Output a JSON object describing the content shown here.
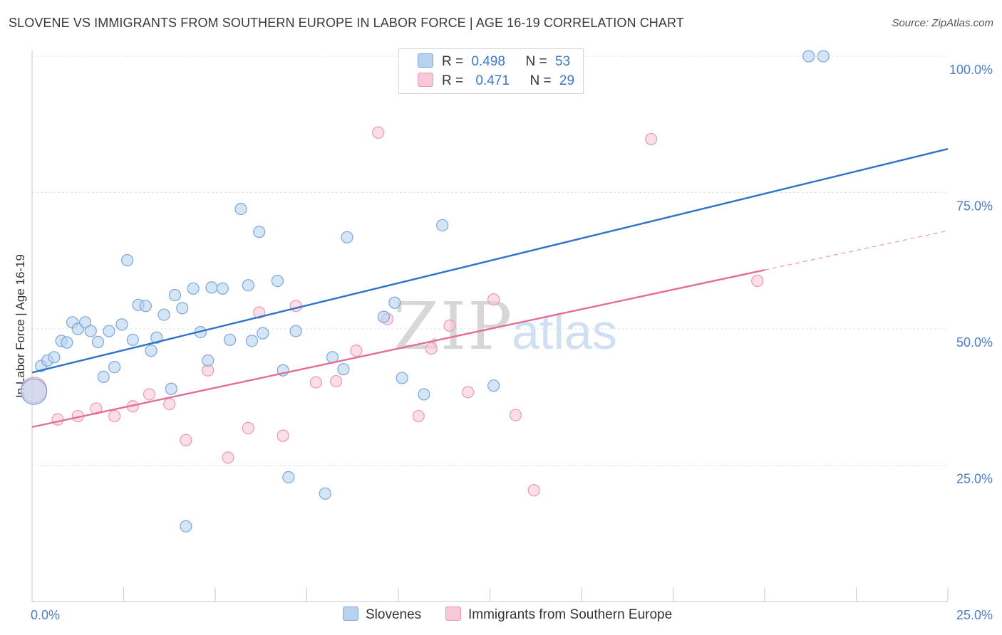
{
  "title": "SLOVENE VS IMMIGRANTS FROM SOUTHERN EUROPE IN LABOR FORCE | AGE 16-19 CORRELATION CHART",
  "source": "Source: ZipAtlas.com",
  "legend": {
    "r_label": "R =",
    "n_label": "N =",
    "series": [
      {
        "name": "Slovenes",
        "r": "0.498",
        "n": "53"
      },
      {
        "name": "Immigrants from Southern Europe",
        "r": "0.471",
        "n": "29"
      }
    ]
  },
  "watermark": {
    "zip": "ZIP",
    "atlas": "atlas"
  },
  "colors": {
    "blue_fill": "#b8d3f0",
    "blue_stroke": "#7aa6dc",
    "blue_line": "#2f72c9",
    "pink_fill": "#f8c8d6",
    "pink_stroke": "#ea9ab2",
    "pink_line": "#e36d97",
    "axis_text": "#4a7fc8",
    "grid": "#e1e1e1"
  },
  "chart_data": {
    "type": "scatter",
    "title": "SLOVENE VS IMMIGRANTS FROM SOUTHERN EUROPE IN LABOR FORCE | AGE 16-19 CORRELATION CHART",
    "xlabel": "",
    "ylabel": "In Labor Force | Age 16-19",
    "xlim": [
      0,
      25
    ],
    "ylim": [
      0,
      105
    ],
    "x_tick_labels": [
      {
        "value": 0,
        "label": "0.0%"
      },
      {
        "value": 25,
        "label": "25.0%"
      }
    ],
    "y_tick_labels": [
      {
        "value": 25,
        "label": "25.0%"
      },
      {
        "value": 50,
        "label": "50.0%"
      },
      {
        "value": 75,
        "label": "75.0%"
      },
      {
        "value": 100,
        "label": "100.0%"
      }
    ],
    "series": [
      {
        "name": "Slovenes",
        "color": "#7aa6dc",
        "trend": {
          "x": [
            0,
            25
          ],
          "y": [
            42.0,
            83.0
          ],
          "dashed_from": null
        },
        "points": [
          {
            "x": 0.05,
            "y": 38.5,
            "big": true
          },
          {
            "x": 0.25,
            "y": 43.2
          },
          {
            "x": 0.42,
            "y": 44.2
          },
          {
            "x": 0.6,
            "y": 44.8
          },
          {
            "x": 0.8,
            "y": 47.8
          },
          {
            "x": 0.95,
            "y": 47.5
          },
          {
            "x": 1.1,
            "y": 51.2
          },
          {
            "x": 1.25,
            "y": 50.0
          },
          {
            "x": 1.45,
            "y": 51.2
          },
          {
            "x": 1.6,
            "y": 49.6
          },
          {
            "x": 1.8,
            "y": 47.6
          },
          {
            "x": 1.95,
            "y": 41.2
          },
          {
            "x": 2.1,
            "y": 49.6
          },
          {
            "x": 2.25,
            "y": 43.0
          },
          {
            "x": 2.45,
            "y": 50.8
          },
          {
            "x": 2.6,
            "y": 62.6
          },
          {
            "x": 2.75,
            "y": 48.0
          },
          {
            "x": 2.9,
            "y": 54.4
          },
          {
            "x": 3.1,
            "y": 54.2
          },
          {
            "x": 3.25,
            "y": 46.0
          },
          {
            "x": 3.4,
            "y": 48.4
          },
          {
            "x": 3.6,
            "y": 52.6
          },
          {
            "x": 3.8,
            "y": 39.0
          },
          {
            "x": 3.9,
            "y": 56.2
          },
          {
            "x": 4.1,
            "y": 53.8
          },
          {
            "x": 4.2,
            "y": 13.8
          },
          {
            "x": 4.4,
            "y": 57.4
          },
          {
            "x": 4.6,
            "y": 49.4
          },
          {
            "x": 4.8,
            "y": 44.2
          },
          {
            "x": 4.9,
            "y": 57.6
          },
          {
            "x": 5.2,
            "y": 57.4
          },
          {
            "x": 5.4,
            "y": 48.0
          },
          {
            "x": 5.7,
            "y": 72.0
          },
          {
            "x": 5.9,
            "y": 58.0
          },
          {
            "x": 6.0,
            "y": 47.8
          },
          {
            "x": 6.2,
            "y": 67.8
          },
          {
            "x": 6.3,
            "y": 49.2
          },
          {
            "x": 6.7,
            "y": 58.8
          },
          {
            "x": 6.85,
            "y": 42.4
          },
          {
            "x": 7.0,
            "y": 22.8
          },
          {
            "x": 7.2,
            "y": 49.6
          },
          {
            "x": 8.0,
            "y": 19.8
          },
          {
            "x": 8.2,
            "y": 44.8
          },
          {
            "x": 8.5,
            "y": 42.6
          },
          {
            "x": 8.6,
            "y": 66.8
          },
          {
            "x": 9.6,
            "y": 52.2
          },
          {
            "x": 9.9,
            "y": 54.8
          },
          {
            "x": 10.1,
            "y": 41.0
          },
          {
            "x": 10.7,
            "y": 38.0
          },
          {
            "x": 11.2,
            "y": 69.0
          },
          {
            "x": 12.6,
            "y": 39.6
          },
          {
            "x": 21.2,
            "y": 100.0
          },
          {
            "x": 21.6,
            "y": 100.0
          }
        ]
      },
      {
        "name": "Immigrants from Southern Europe",
        "color": "#ea9ab2",
        "trend": {
          "x": [
            0,
            25
          ],
          "y": [
            32.0,
            68.0
          ],
          "dashed_from": 20.0
        },
        "points": [
          {
            "x": 0.05,
            "y": 38.8,
            "big": true
          },
          {
            "x": 0.7,
            "y": 33.4
          },
          {
            "x": 1.25,
            "y": 34.0
          },
          {
            "x": 1.75,
            "y": 35.4
          },
          {
            "x": 2.25,
            "y": 34.0
          },
          {
            "x": 2.75,
            "y": 35.8
          },
          {
            "x": 3.2,
            "y": 38.0
          },
          {
            "x": 3.75,
            "y": 36.2
          },
          {
            "x": 4.2,
            "y": 29.6
          },
          {
            "x": 4.8,
            "y": 42.4
          },
          {
            "x": 5.35,
            "y": 26.4
          },
          {
            "x": 5.9,
            "y": 31.8
          },
          {
            "x": 6.2,
            "y": 53.0
          },
          {
            "x": 6.85,
            "y": 30.4
          },
          {
            "x": 7.2,
            "y": 54.2
          },
          {
            "x": 7.75,
            "y": 40.2
          },
          {
            "x": 8.3,
            "y": 40.4
          },
          {
            "x": 8.85,
            "y": 46.0
          },
          {
            "x": 9.45,
            "y": 86.0
          },
          {
            "x": 9.7,
            "y": 51.8
          },
          {
            "x": 10.55,
            "y": 34.0
          },
          {
            "x": 10.9,
            "y": 46.4
          },
          {
            "x": 11.4,
            "y": 50.6
          },
          {
            "x": 11.9,
            "y": 38.4
          },
          {
            "x": 12.6,
            "y": 55.4
          },
          {
            "x": 13.2,
            "y": 34.2
          },
          {
            "x": 13.7,
            "y": 20.4
          },
          {
            "x": 16.9,
            "y": 84.8
          },
          {
            "x": 19.8,
            "y": 58.8
          }
        ]
      }
    ]
  }
}
